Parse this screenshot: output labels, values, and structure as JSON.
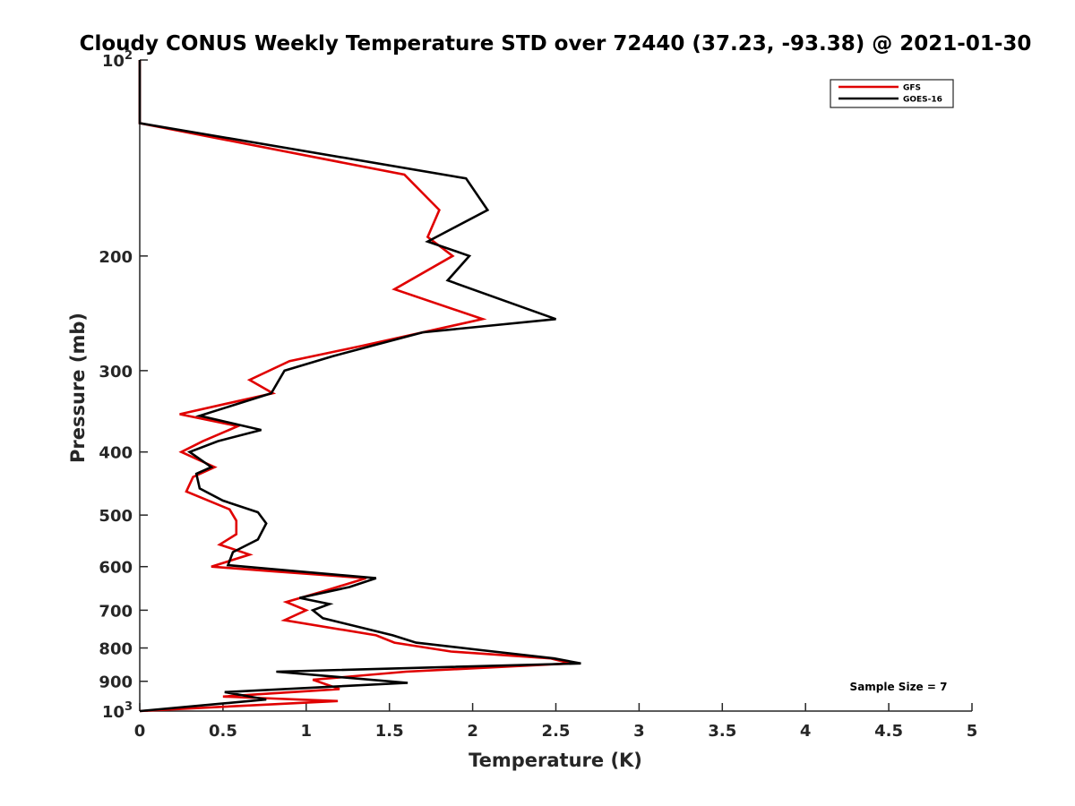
{
  "chart_data": {
    "type": "line",
    "title": "Cloudy CONUS Weekly Temperature STD over 72440 (37.23, -93.38) @ 2021-01-30",
    "xlabel": "Temperature (K)",
    "ylabel": "Pressure (mb)",
    "xlim": [
      0,
      5
    ],
    "ylim": [
      1000,
      100
    ],
    "yscale": "log",
    "y_reversed": true,
    "grid": false,
    "legend_position": "top-right",
    "xticks": [
      0,
      0.5,
      1,
      1.5,
      2,
      2.5,
      3,
      3.5,
      4,
      4.5,
      5
    ],
    "xtick_labels": [
      "0",
      "0.5",
      "1",
      "1.5",
      "2",
      "2.5",
      "3",
      "3.5",
      "4",
      "4.5",
      "5"
    ],
    "yticks": [
      100,
      200,
      300,
      400,
      500,
      600,
      700,
      800,
      900,
      1000
    ],
    "ytick_labels": [
      {
        "base": "10",
        "exp": "2"
      },
      {
        "base": "200",
        "exp": ""
      },
      {
        "base": "300",
        "exp": ""
      },
      {
        "base": "400",
        "exp": ""
      },
      {
        "base": "500",
        "exp": ""
      },
      {
        "base": "600",
        "exp": ""
      },
      {
        "base": "700",
        "exp": ""
      },
      {
        "base": "800",
        "exp": ""
      },
      {
        "base": "900",
        "exp": ""
      },
      {
        "base": "10",
        "exp": "3"
      }
    ],
    "annotation": "Sample Size = 7",
    "series": [
      {
        "name": "GFS",
        "color": "#e00000",
        "points": [
          [
            0,
            100
          ],
          [
            0,
            125
          ],
          [
            1.59,
            150
          ],
          [
            1.8,
            170
          ],
          [
            1.73,
            187
          ],
          [
            1.88,
            200
          ],
          [
            1.53,
            225
          ],
          [
            2.06,
            250
          ],
          [
            1.33,
            275
          ],
          [
            0.9,
            290
          ],
          [
            0.66,
            310
          ],
          [
            0.8,
            325
          ],
          [
            0.24,
            350
          ],
          [
            0.59,
            365
          ],
          [
            0.38,
            385
          ],
          [
            0.25,
            400
          ],
          [
            0.45,
            422
          ],
          [
            0.32,
            437
          ],
          [
            0.28,
            460
          ],
          [
            0.54,
            490
          ],
          [
            0.58,
            510
          ],
          [
            0.58,
            535
          ],
          [
            0.48,
            555
          ],
          [
            0.66,
            575
          ],
          [
            0.43,
            600
          ],
          [
            0.8,
            610
          ],
          [
            1.36,
            625
          ],
          [
            1.1,
            655
          ],
          [
            0.88,
            680
          ],
          [
            1.0,
            700
          ],
          [
            0.87,
            725
          ],
          [
            1.42,
            765
          ],
          [
            1.53,
            785
          ],
          [
            1.87,
            810
          ],
          [
            2.47,
            830
          ],
          [
            2.59,
            845
          ],
          [
            1.6,
            870
          ],
          [
            1.04,
            895
          ],
          [
            1.2,
            925
          ],
          [
            0.5,
            950
          ],
          [
            1.19,
            965
          ],
          [
            0.5,
            985
          ],
          [
            0,
            1000
          ]
        ]
      },
      {
        "name": "GOES-16",
        "color": "#000000",
        "points": [
          [
            0,
            100
          ],
          [
            0,
            125
          ],
          [
            1.96,
            152
          ],
          [
            2.09,
            170
          ],
          [
            1.73,
            190
          ],
          [
            1.98,
            200
          ],
          [
            1.85,
            218
          ],
          [
            2.5,
            250
          ],
          [
            1.7,
            262
          ],
          [
            1.16,
            285
          ],
          [
            0.87,
            300
          ],
          [
            0.79,
            325
          ],
          [
            0.36,
            352
          ],
          [
            0.73,
            370
          ],
          [
            0.47,
            385
          ],
          [
            0.3,
            400
          ],
          [
            0.43,
            422
          ],
          [
            0.34,
            432
          ],
          [
            0.36,
            455
          ],
          [
            0.5,
            475
          ],
          [
            0.71,
            495
          ],
          [
            0.76,
            515
          ],
          [
            0.71,
            545
          ],
          [
            0.56,
            570
          ],
          [
            0.53,
            597
          ],
          [
            1.42,
            625
          ],
          [
            1.26,
            645
          ],
          [
            0.96,
            670
          ],
          [
            1.14,
            685
          ],
          [
            1.04,
            700
          ],
          [
            1.1,
            720
          ],
          [
            1.52,
            765
          ],
          [
            1.66,
            785
          ],
          [
            2.03,
            805
          ],
          [
            2.49,
            830
          ],
          [
            2.65,
            845
          ],
          [
            0.82,
            870
          ],
          [
            1.61,
            905
          ],
          [
            0.51,
            935
          ],
          [
            0.76,
            960
          ],
          [
            0,
            1000
          ]
        ]
      }
    ]
  }
}
